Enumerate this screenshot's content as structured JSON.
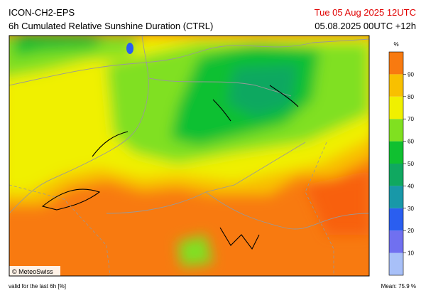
{
  "header": {
    "title": "ICON-CH2-EPS",
    "subtitle": "6h Cumulated Relative Sunshine Duration (CTRL)",
    "valid_time": "Tue 05 Aug 2025 12UTC",
    "run": "05.08.2025 00UTC +12h"
  },
  "map": {
    "credit": "© MeteoSwiss"
  },
  "legend": {
    "unit": "%",
    "lim": [
      0,
      100
    ],
    "ticks": [
      10,
      20,
      30,
      40,
      50,
      60,
      70,
      80,
      90
    ],
    "colors": [
      "#a8c0f8",
      "#7070f0",
      "#2a5ef0",
      "#1898a8",
      "#10a860",
      "#10c030",
      "#80e020",
      "#f0f000",
      "#f8c000",
      "#f87a10"
    ]
  },
  "footer": {
    "note": "valid for the last 6h [%]",
    "mean": "Mean:   75.9 %"
  }
}
